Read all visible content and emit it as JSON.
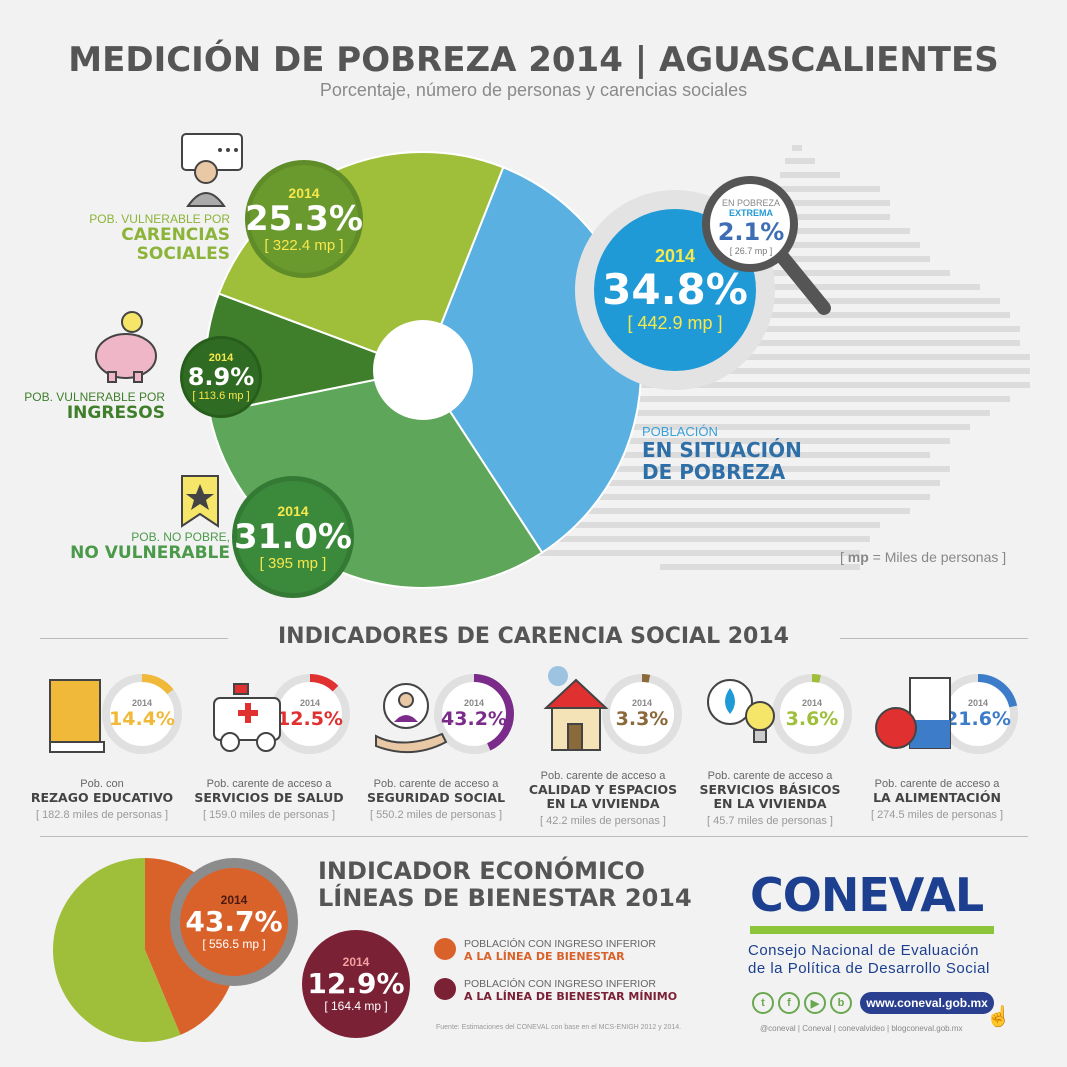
{
  "header": {
    "title": "MEDICIÓN DE POBREZA 2014 | AGUASCALIENTES",
    "subtitle": "Porcentaje, número de personas y carencias sociales"
  },
  "chart_data": {
    "type": "pie",
    "title": "MEDICIÓN DE POBREZA 2014 | AGUASCALIENTES",
    "categories": [
      "Pob. vulnerable por carencias sociales",
      "Pob. vulnerable por ingresos",
      "Pob. no pobre, no vulnerable",
      "Población en situación de pobreza"
    ],
    "values": [
      25.3,
      8.9,
      31.0,
      34.8
    ],
    "colors": [
      "#9fbf3b",
      "#3f7e2a",
      "#5ea65a",
      "#5ab0e0"
    ]
  },
  "pie": {
    "carencias": {
      "year": "2014",
      "pct": "25.3%",
      "mp": "[ 322.4 mp ]",
      "label_small": "POB. VULNERABLE POR",
      "label_big1": "CARENCIAS",
      "label_big2": "SOCIALES"
    },
    "ingresos": {
      "year": "2014",
      "pct": "8.9%",
      "mp": "[ 113.6 mp ]",
      "label_small": "POB. VULNERABLE POR",
      "label_big": "INGRESOS"
    },
    "no_vulnerable": {
      "year": "2014",
      "pct": "31.0%",
      "mp": "[ 395 mp ]",
      "label_small": "POB. NO POBRE,",
      "label_big": "NO VULNERABLE"
    },
    "pobreza": {
      "year": "2014",
      "pct": "34.8%",
      "mp": "[ 442.9 mp ]",
      "label_small": "POBLACIÓN",
      "label_big1": "EN SITUACIÓN",
      "label_big2": "DE POBREZA"
    },
    "extrema": {
      "label1": "EN POBREZA",
      "label2": "EXTREMA",
      "pct": "2.1%",
      "mp": "[ 26.7 mp ]"
    },
    "mp_note_bold": "mp",
    "mp_note_rest": " = Miles de personas"
  },
  "indicadores": {
    "title": "INDICADORES DE CARENCIA SOCIAL 2014",
    "items": [
      {
        "year": "2014",
        "pct": "14.4%",
        "value": 14.4,
        "color": "#f0b93a",
        "desc": "Pob. con",
        "bold1": "REZAGO EDUCATIVO",
        "bold2": "",
        "miles": "[ 182.8 miles de personas ]"
      },
      {
        "year": "2014",
        "pct": "12.5%",
        "value": 12.5,
        "color": "#e03030",
        "desc": "Pob. carente de acceso a",
        "bold1": "SERVICIOS DE SALUD",
        "bold2": "",
        "miles": "[ 159.0 miles de personas ]"
      },
      {
        "year": "2014",
        "pct": "43.2%",
        "value": 43.2,
        "color": "#7b2b8a",
        "desc": "Pob. carente de acceso a",
        "bold1": "SEGURIDAD SOCIAL",
        "bold2": "",
        "miles": "[ 550.2 miles de personas ]"
      },
      {
        "year": "2014",
        "pct": "3.3%",
        "value": 3.3,
        "color": "#8a6a3a",
        "desc": "Pob. carente de acceso a",
        "bold1": "CALIDAD Y ESPACIOS",
        "bold2": "EN LA VIVIENDA",
        "miles": "[ 42.2 miles de personas ]"
      },
      {
        "year": "2014",
        "pct": "3.6%",
        "value": 3.6,
        "color": "#9fbf3b",
        "desc": "Pob. carente de acceso a",
        "bold1": "SERVICIOS BÁSICOS",
        "bold2": "EN LA VIVIENDA",
        "miles": "[ 45.7 miles de personas ]"
      },
      {
        "year": "2014",
        "pct": "21.6%",
        "value": 21.6,
        "color": "#3d7cc9",
        "desc": "Pob. carente de acceso a",
        "bold1": "LA ALIMENTACIÓN",
        "bold2": "",
        "miles": "[ 274.5 miles de personas ]"
      }
    ]
  },
  "economico": {
    "title1": "INDICADOR ECONÓMICO",
    "title2": "LÍNEAS DE BIENESTAR 2014",
    "bienestar": {
      "year": "2014",
      "pct": "43.7%",
      "mp": "[ 556.5 mp ]"
    },
    "minimo": {
      "year": "2014",
      "pct": "12.9%",
      "mp": "[ 164.4 mp ]"
    },
    "leg1_small": "POBLACIÓN CON INGRESO INFERIOR",
    "leg1_big": "A LA LÍNEA DE BIENESTAR",
    "leg2_small": "POBLACIÓN CON INGRESO INFERIOR",
    "leg2_big": "A LA LÍNEA DE BIENESTAR MÍNIMO",
    "source": "Fuente: Estimaciones del CONEVAL con base en el MCS-ENIGH 2012 y 2014."
  },
  "coneval": {
    "logo": "CONEVAL",
    "name1": "Consejo Nacional de Evaluación",
    "name2": "de la Política de Desarrollo Social",
    "url": "www.coneval.gob.mx",
    "social": "@coneval  |  Coneval  |  conevalvideo  |  blogconeval.gob.mx"
  },
  "colors": {
    "green_light": "#9fbf3b",
    "green_dark": "#3f7e2a",
    "green_mid": "#5ea65a",
    "blue": "#5ab0e0",
    "orange": "#d9622b",
    "maroon": "#7a2136",
    "coneval_blue": "#1c3f8f"
  }
}
